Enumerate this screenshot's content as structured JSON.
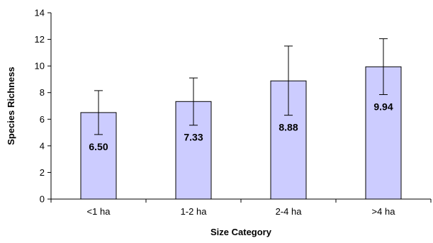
{
  "chart_data": {
    "type": "bar",
    "categories": [
      "<1 ha",
      "1-2 ha",
      "2-4 ha",
      ">4 ha"
    ],
    "values": [
      6.5,
      7.33,
      8.88,
      9.94
    ],
    "data_labels": [
      "6.50",
      "7.33",
      "8.88",
      "9.94"
    ],
    "error_low": [
      4.85,
      5.55,
      6.3,
      7.85
    ],
    "error_high": [
      8.15,
      9.1,
      11.5,
      12.05
    ],
    "xlabel": "Size Category",
    "ylabel": "Species Richness",
    "ylim": [
      0,
      14
    ],
    "y_ticks": [
      "0",
      "2",
      "4",
      "6",
      "8",
      "10",
      "12",
      "14"
    ],
    "y_tick_values": [
      0,
      2,
      4,
      6,
      8,
      10,
      12,
      14
    ],
    "grid": false,
    "bar_color": "#ccccff",
    "bar_stroke": "#000000"
  }
}
